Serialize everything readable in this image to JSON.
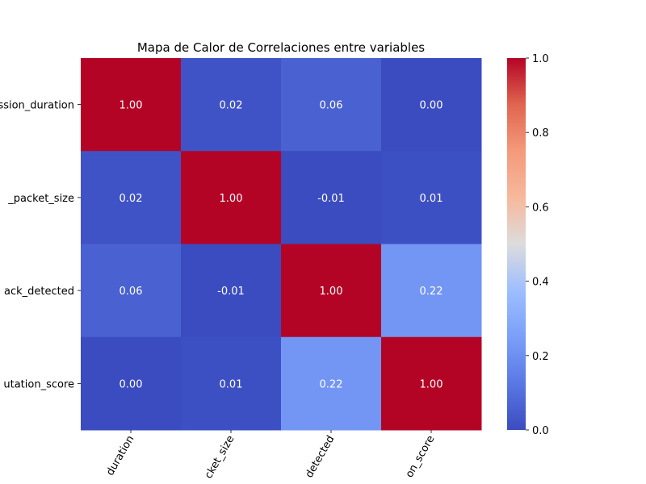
{
  "chart_data": {
    "type": "heatmap",
    "title": "Mapa de Calor de Correlaciones entre variables",
    "row_labels": [
      "ssion_duration",
      "_packet_size",
      "ack_detected",
      "utation_score"
    ],
    "col_labels": [
      "duration",
      "cket_size",
      "detected",
      "on_score"
    ],
    "values": [
      [
        1.0,
        0.02,
        0.06,
        0.0
      ],
      [
        0.02,
        1.0,
        -0.01,
        0.01
      ],
      [
        0.06,
        -0.01,
        1.0,
        0.22
      ],
      [
        0.0,
        0.01,
        0.22,
        1.0
      ]
    ],
    "value_format": "2dp",
    "colormap": "coolwarm",
    "colorbar": {
      "range": [
        0.0,
        1.0
      ],
      "ticks": [
        "0.0",
        "0.2",
        "0.4",
        "0.6",
        "0.8",
        "1.0"
      ]
    }
  }
}
